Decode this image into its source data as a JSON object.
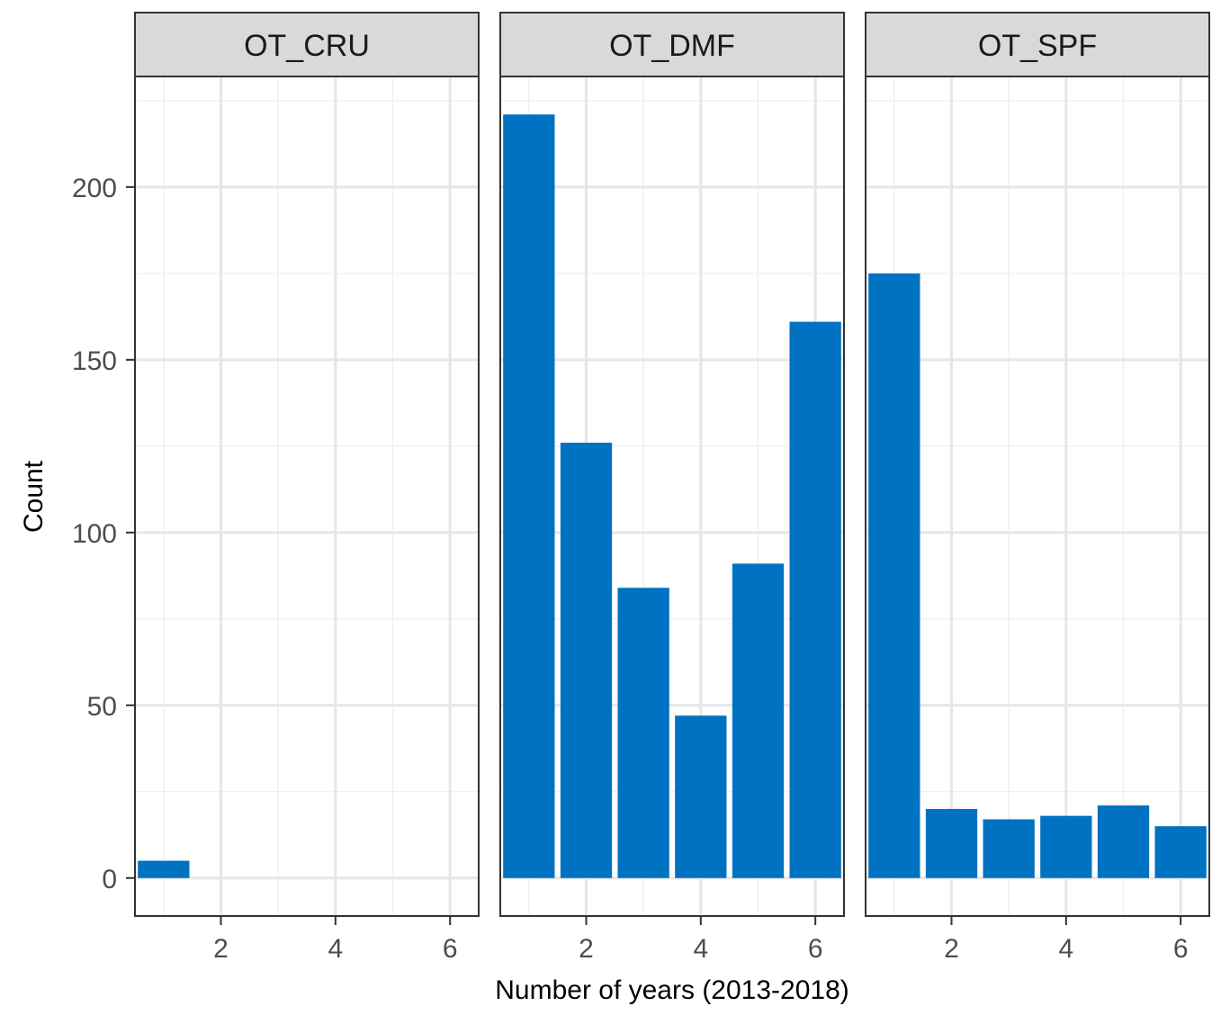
{
  "chart_data": {
    "type": "bar",
    "facet_by": "panel",
    "xlabel": "Number of years (2013-2018)",
    "ylabel": "Count",
    "x": [
      1,
      2,
      3,
      4,
      5,
      6
    ],
    "xlim": [
      0.5,
      6.5
    ],
    "ylim": [
      -11,
      232
    ],
    "x_ticks": [
      2,
      4,
      6
    ],
    "y_ticks": [
      0,
      50,
      100,
      150,
      200
    ],
    "grid": true,
    "bar_color": "#0072C2",
    "panels": [
      {
        "name": "OT_CRU",
        "values": [
          5,
          0,
          0,
          0,
          0,
          0
        ]
      },
      {
        "name": "OT_DMF",
        "values": [
          221,
          126,
          84,
          47,
          91,
          161
        ]
      },
      {
        "name": "OT_SPF",
        "values": [
          175,
          20,
          17,
          18,
          21,
          15
        ]
      }
    ]
  }
}
